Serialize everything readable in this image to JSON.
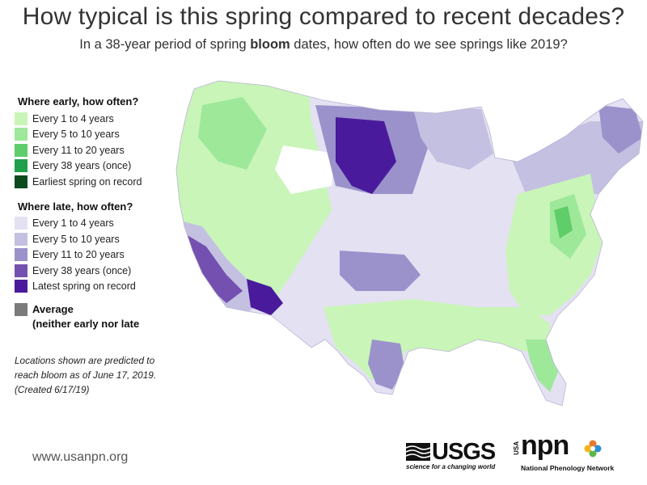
{
  "header": {
    "title": "How typical is this spring compared to recent decades?",
    "subtitle_before": "In a 38-year period of spring ",
    "subtitle_bold": "bloom",
    "subtitle_after": " dates, how often do we see springs like 2019?"
  },
  "legend": {
    "early_heading": "Where early, how often?",
    "early_items": [
      {
        "label": "Every 1 to 4 years",
        "color": "#c9f5b8"
      },
      {
        "label": "Every 5 to 10 years",
        "color": "#9ee89a"
      },
      {
        "label": "Every 11 to 20 years",
        "color": "#5fcd6a"
      },
      {
        "label": "Every 38 years (once)",
        "color": "#20a04a"
      },
      {
        "label": "Earliest spring on record",
        "color": "#0c4a1e"
      }
    ],
    "late_heading": "Where late, how often?",
    "late_items": [
      {
        "label": "Every 1 to 4 years",
        "color": "#e4e1f2"
      },
      {
        "label": "Every 5 to 10 years",
        "color": "#c4c0e2"
      },
      {
        "label": "Every 11 to 20 years",
        "color": "#9b92cc"
      },
      {
        "label": "Every 38 years (once)",
        "color": "#7450b0"
      },
      {
        "label": "Latest spring on record",
        "color": "#4a1a9c"
      }
    ],
    "average": {
      "line1": "Average",
      "line2": "(neither early nor late",
      "color": "#7b7b7b"
    }
  },
  "note": "Locations shown are predicted to reach bloom as of June 17, 2019. (Created 6/17/19)",
  "footer": {
    "website": "www.usanpn.org",
    "usgs_word": "USGS",
    "usgs_tagline": "science for a changing world",
    "npn_usa": "USA",
    "npn_word": "npn",
    "npn_tagline": "National Phenology Network"
  }
}
